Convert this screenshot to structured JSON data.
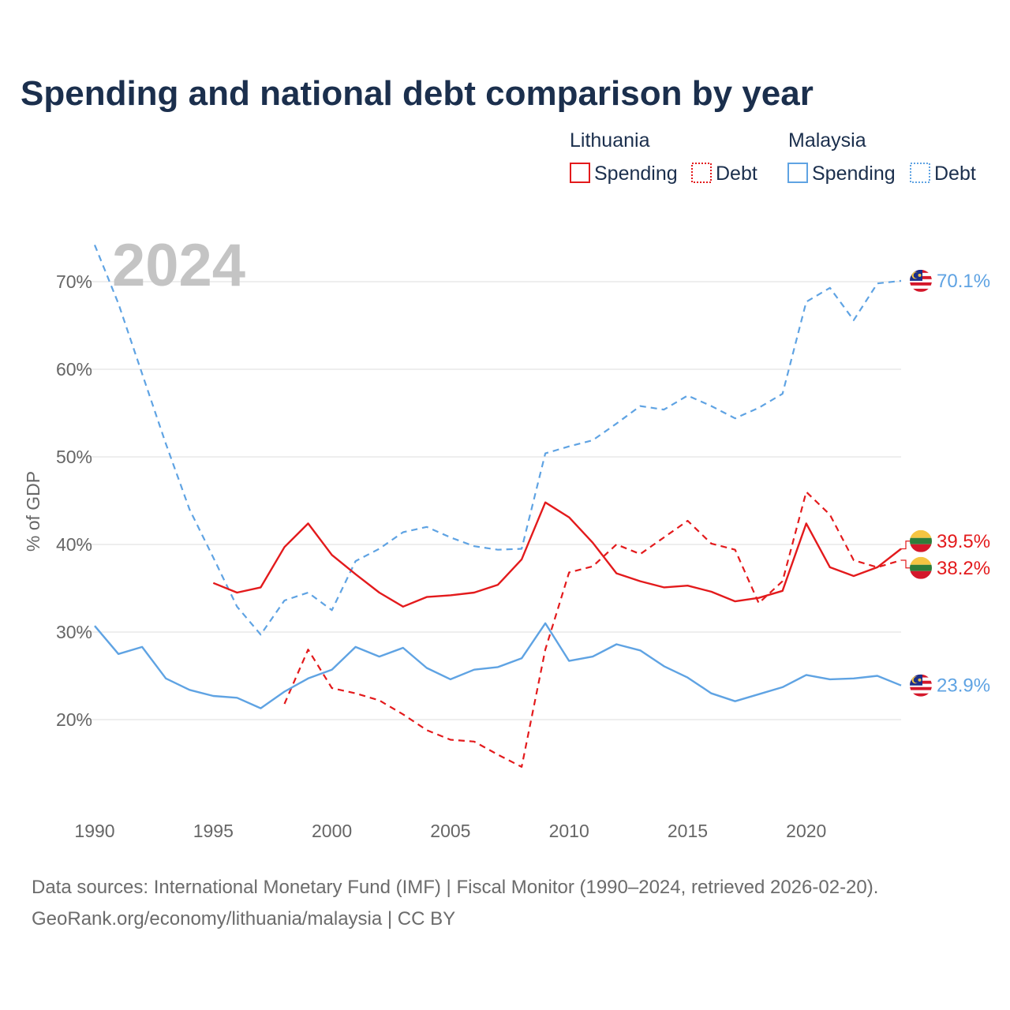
{
  "title": "Spending and national debt comparison by year",
  "current_year_label": "2024",
  "legend": {
    "groups": [
      {
        "country": "Lithuania",
        "color": "#e31a1c",
        "items": [
          {
            "label": "Spending",
            "style": "solid"
          },
          {
            "label": "Debt",
            "style": "dotted"
          }
        ]
      },
      {
        "country": "Malaysia",
        "color": "#5fa3e3",
        "items": [
          {
            "label": "Spending",
            "style": "solid"
          },
          {
            "label": "Debt",
            "style": "dotted"
          }
        ]
      }
    ]
  },
  "footer": {
    "line1": "Data sources: International Monetary Fund (IMF) | Fiscal Monitor (1990–2024, retrieved 2026-02-20).",
    "line2": "GeoRank.org/economy/lithuania/malaysia | CC BY"
  },
  "chart_data": {
    "type": "line",
    "title": "Spending and national debt comparison by year",
    "xlabel": "",
    "ylabel": "% of GDP",
    "xlim": [
      1990,
      2024
    ],
    "ylim": [
      10,
      75
    ],
    "x_ticks": [
      1990,
      1995,
      2000,
      2005,
      2010,
      2015,
      2020
    ],
    "x_tick_labels": [
      "1990",
      "1995",
      "2000",
      "2005",
      "2010",
      "2015",
      "2020"
    ],
    "y_ticks": [
      20,
      30,
      40,
      50,
      60,
      70
    ],
    "y_tick_labels": [
      "20%",
      "30%",
      "40%",
      "50%",
      "60%",
      "70%"
    ],
    "grid": true,
    "series": [
      {
        "name": "Malaysia Debt",
        "country": "Malaysia",
        "metric": "Debt",
        "color": "#5fa3e3",
        "dash": "dashed",
        "x": [
          1990,
          1991,
          1992,
          1993,
          1994,
          1995,
          1996,
          1997,
          1998,
          1999,
          2000,
          2001,
          2002,
          2003,
          2004,
          2005,
          2006,
          2007,
          2008,
          2009,
          2010,
          2011,
          2012,
          2013,
          2014,
          2015,
          2016,
          2017,
          2018,
          2019,
          2020,
          2021,
          2022,
          2023,
          2024
        ],
        "values": [
          74.2,
          67.5,
          59.5,
          51.5,
          44.0,
          38.5,
          32.9,
          29.7,
          33.6,
          34.5,
          32.5,
          38.1,
          39.5,
          41.4,
          42.0,
          40.8,
          39.8,
          39.4,
          39.5,
          50.4,
          51.2,
          51.9,
          53.8,
          55.8,
          55.4,
          57.0,
          55.8,
          54.4,
          55.6,
          57.2,
          67.7,
          69.3,
          65.6,
          69.8,
          70.1
        ],
        "end_label": "70.1%"
      },
      {
        "name": "Lithuania Spending",
        "country": "Lithuania",
        "metric": "Spending",
        "color": "#e31a1c",
        "dash": "solid",
        "x": [
          1995,
          1996,
          1997,
          1998,
          1999,
          2000,
          2001,
          2002,
          2003,
          2004,
          2005,
          2006,
          2007,
          2008,
          2009,
          2010,
          2011,
          2012,
          2013,
          2014,
          2015,
          2016,
          2017,
          2018,
          2019,
          2020,
          2021,
          2022,
          2023,
          2024
        ],
        "values": [
          35.6,
          34.5,
          35.1,
          39.7,
          42.4,
          38.8,
          36.6,
          34.5,
          32.9,
          34.0,
          34.2,
          34.5,
          35.4,
          38.3,
          44.8,
          43.1,
          40.2,
          36.7,
          35.8,
          35.1,
          35.3,
          34.6,
          33.5,
          33.9,
          34.7,
          42.4,
          37.4,
          36.4,
          37.4,
          39.5
        ],
        "end_label": "39.5%"
      },
      {
        "name": "Lithuania Debt",
        "country": "Lithuania",
        "metric": "Debt",
        "color": "#e31a1c",
        "dash": "dashed",
        "x": [
          1998,
          1999,
          2000,
          2001,
          2002,
          2003,
          2004,
          2005,
          2006,
          2007,
          2008,
          2009,
          2010,
          2011,
          2012,
          2013,
          2014,
          2015,
          2016,
          2017,
          2018,
          2019,
          2020,
          2021,
          2022,
          2023,
          2024
        ],
        "values": [
          21.8,
          28.0,
          23.6,
          23.0,
          22.2,
          20.6,
          18.8,
          17.7,
          17.5,
          16.0,
          14.6,
          28.0,
          36.8,
          37.5,
          40.0,
          38.9,
          40.8,
          42.7,
          40.1,
          39.4,
          33.3,
          35.8,
          46.0,
          43.4,
          38.2,
          37.4,
          38.2
        ],
        "end_label": "38.2%"
      },
      {
        "name": "Malaysia Spending",
        "country": "Malaysia",
        "metric": "Spending",
        "color": "#5fa3e3",
        "dash": "solid",
        "x": [
          1990,
          1991,
          1992,
          1993,
          1994,
          1995,
          1996,
          1997,
          1998,
          1999,
          2000,
          2001,
          2002,
          2003,
          2004,
          2005,
          2006,
          2007,
          2008,
          2009,
          2010,
          2011,
          2012,
          2013,
          2014,
          2015,
          2016,
          2017,
          2018,
          2019,
          2020,
          2021,
          2022,
          2023,
          2024
        ],
        "values": [
          30.7,
          27.5,
          28.3,
          24.7,
          23.4,
          22.7,
          22.5,
          21.3,
          23.2,
          24.7,
          25.7,
          28.3,
          27.2,
          28.2,
          25.9,
          24.6,
          25.7,
          26.0,
          27.0,
          31.0,
          26.7,
          27.2,
          28.6,
          27.9,
          26.1,
          24.8,
          23.0,
          22.1,
          22.9,
          23.7,
          25.1,
          24.6,
          24.7,
          25.0,
          23.9
        ],
        "end_label": "23.9%"
      }
    ]
  }
}
